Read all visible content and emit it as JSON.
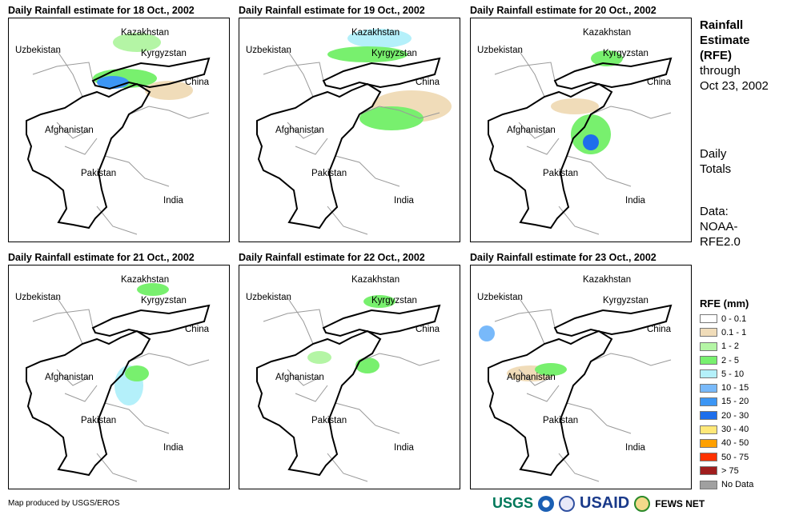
{
  "panels": [
    {
      "title": "Daily Rainfall estimate for 18 Oct., 2002"
    },
    {
      "title": "Daily Rainfall estimate for 19 Oct., 2002"
    },
    {
      "title": "Daily Rainfall estimate for 20 Oct., 2002"
    },
    {
      "title": "Daily Rainfall estimate for 21 Oct., 2002"
    },
    {
      "title": "Daily Rainfall estimate for 22 Oct., 2002"
    },
    {
      "title": "Daily Rainfall estimate for 23 Oct., 2002"
    }
  ],
  "countries": {
    "kazakhstan": "Kazakhstan",
    "uzbekistan": "Uzbekistan",
    "kyrgyzstan": "Kyrgyzstan",
    "china": "China",
    "afghanistan": "Afghanistan",
    "pakistan": "Pakistan",
    "india": "India"
  },
  "side": {
    "l1": "Rainfall",
    "l2": "Estimate",
    "l3": "(RFE)",
    "l4": "through",
    "l5": "Oct 23, 2002",
    "l6": "Daily",
    "l7": "Totals",
    "l8": "Data:",
    "l9": "NOAA-",
    "l10": "RFE2.0"
  },
  "legend": {
    "title": "RFE (mm)",
    "items": [
      {
        "label": "0 - 0.1",
        "color": "#ffffff"
      },
      {
        "label": "0.1 - 1",
        "color": "#f0dcb9"
      },
      {
        "label": "1 - 2",
        "color": "#b4f5a5"
      },
      {
        "label": "2 - 5",
        "color": "#78f06e"
      },
      {
        "label": "5 - 10",
        "color": "#b4f0fa"
      },
      {
        "label": "10 - 15",
        "color": "#78b9fa"
      },
      {
        "label": "15 - 20",
        "color": "#3c96f5"
      },
      {
        "label": "20 - 30",
        "color": "#1e6eeb"
      },
      {
        "label": "30 - 40",
        "color": "#ffe878"
      },
      {
        "label": "40 - 50",
        "color": "#ffa000"
      },
      {
        "label": "50 - 75",
        "color": "#ff3200"
      },
      {
        "label": "> 75",
        "color": "#a01e1e"
      },
      {
        "label": "No Data",
        "color": "#a0a0a0"
      }
    ]
  },
  "footer": {
    "credit": "Map produced by USGS/EROS",
    "usgs": "USGS",
    "usaid": "USAID",
    "fews": "FEWS NET"
  }
}
